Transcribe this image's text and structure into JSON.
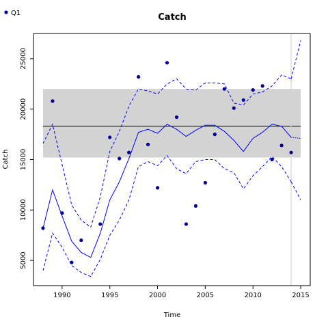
{
  "chart_data": {
    "type": "line",
    "title": "Catch",
    "xlabel": "Time",
    "ylabel": "Catch",
    "xlim": [
      1987.0,
      2016.0
    ],
    "ylim": [
      2500,
      27500
    ],
    "x_ticks": [
      1990,
      1995,
      2000,
      2005,
      2010,
      2015
    ],
    "y_ticks": [
      5000,
      10000,
      15000,
      20000,
      25000
    ],
    "grid": false,
    "legend": {
      "position": "top-left",
      "entries": [
        "Q1"
      ]
    },
    "colors": {
      "points": "#00008b",
      "fit": "#0000ff",
      "band": "#d3d3d3",
      "mean": "#000000",
      "vline": "#d3d3d3"
    },
    "observed": {
      "name": "Q1",
      "x": [
        1988,
        1989,
        1990,
        1991,
        1992,
        1994,
        1995,
        1996,
        1997,
        1998,
        1999,
        2000,
        2001,
        2002,
        2003,
        2004,
        2005,
        2006,
        2007,
        2008,
        2009,
        2010,
        2011,
        2012,
        2013,
        2014
      ],
      "y": [
        8200,
        20800,
        9700,
        4800,
        7000,
        8600,
        17200,
        15100,
        15700,
        23200,
        16500,
        12200,
        24600,
        19200,
        8600,
        10400,
        12700,
        17500,
        22000,
        20100,
        20900,
        21900,
        22300,
        15000,
        16400,
        15700
      ]
    },
    "fit": {
      "x": [
        1988,
        1989,
        1990,
        1991,
        1992,
        1993,
        1994,
        1995,
        1996,
        1997,
        1998,
        1999,
        2000,
        2001,
        2002,
        2003,
        2004,
        2005,
        2006,
        2007,
        2008,
        2009,
        2010,
        2011,
        2012,
        2013,
        2014
      ],
      "y": [
        8200,
        12000,
        9400,
        6900,
        5800,
        5300,
        7700,
        11000,
        12800,
        15100,
        17700,
        18000,
        17600,
        18500,
        18000,
        17300,
        17900,
        18400,
        18400,
        17800,
        16900,
        15800,
        17100,
        17700,
        18500,
        18300,
        17200
      ]
    },
    "upper_ci": {
      "x": [
        1988,
        1989,
        1990,
        1991,
        1992,
        1993,
        1994,
        1995,
        1996,
        1997,
        1998,
        1999,
        2000,
        2001,
        2002,
        2003,
        2004,
        2005,
        2006,
        2007,
        2008,
        2009,
        2010,
        2011,
        2012,
        2013,
        2014
      ],
      "y": [
        16600,
        18500,
        14500,
        10500,
        9000,
        8300,
        11300,
        15800,
        17800,
        20300,
        22000,
        21800,
        21500,
        22500,
        23000,
        22000,
        21900,
        22600,
        22600,
        22500,
        20600,
        20400,
        21500,
        21700,
        22300,
        23400,
        23000
      ]
    },
    "lower_ci": {
      "x": [
        1988,
        1989,
        1990,
        1991,
        1992,
        1993,
        1994,
        1995,
        1996,
        1997,
        1998,
        1999,
        2000,
        2001,
        2002,
        2003,
        2004,
        2005,
        2006,
        2007,
        2008,
        2009,
        2010,
        2011,
        2012,
        2013,
        2014
      ],
      "y": [
        4000,
        7700,
        6300,
        4500,
        3800,
        3400,
        5100,
        7500,
        9000,
        11000,
        14300,
        14800,
        14400,
        15400,
        14100,
        13600,
        14800,
        15000,
        15000,
        14100,
        13700,
        12100,
        13400,
        14300,
        15300,
        14300,
        12800
      ]
    },
    "forecast": {
      "x": [
        2014,
        2015
      ],
      "y": [
        17200,
        17100
      ]
    },
    "forecast_upper": {
      "x": [
        2014,
        2015
      ],
      "y": [
        23000,
        26800
      ]
    },
    "forecast_lower": {
      "x": [
        2014,
        2015
      ],
      "y": [
        12800,
        11000
      ]
    },
    "mean_line": 18300,
    "band": [
      15200,
      22000
    ],
    "vline_x": 2014
  }
}
